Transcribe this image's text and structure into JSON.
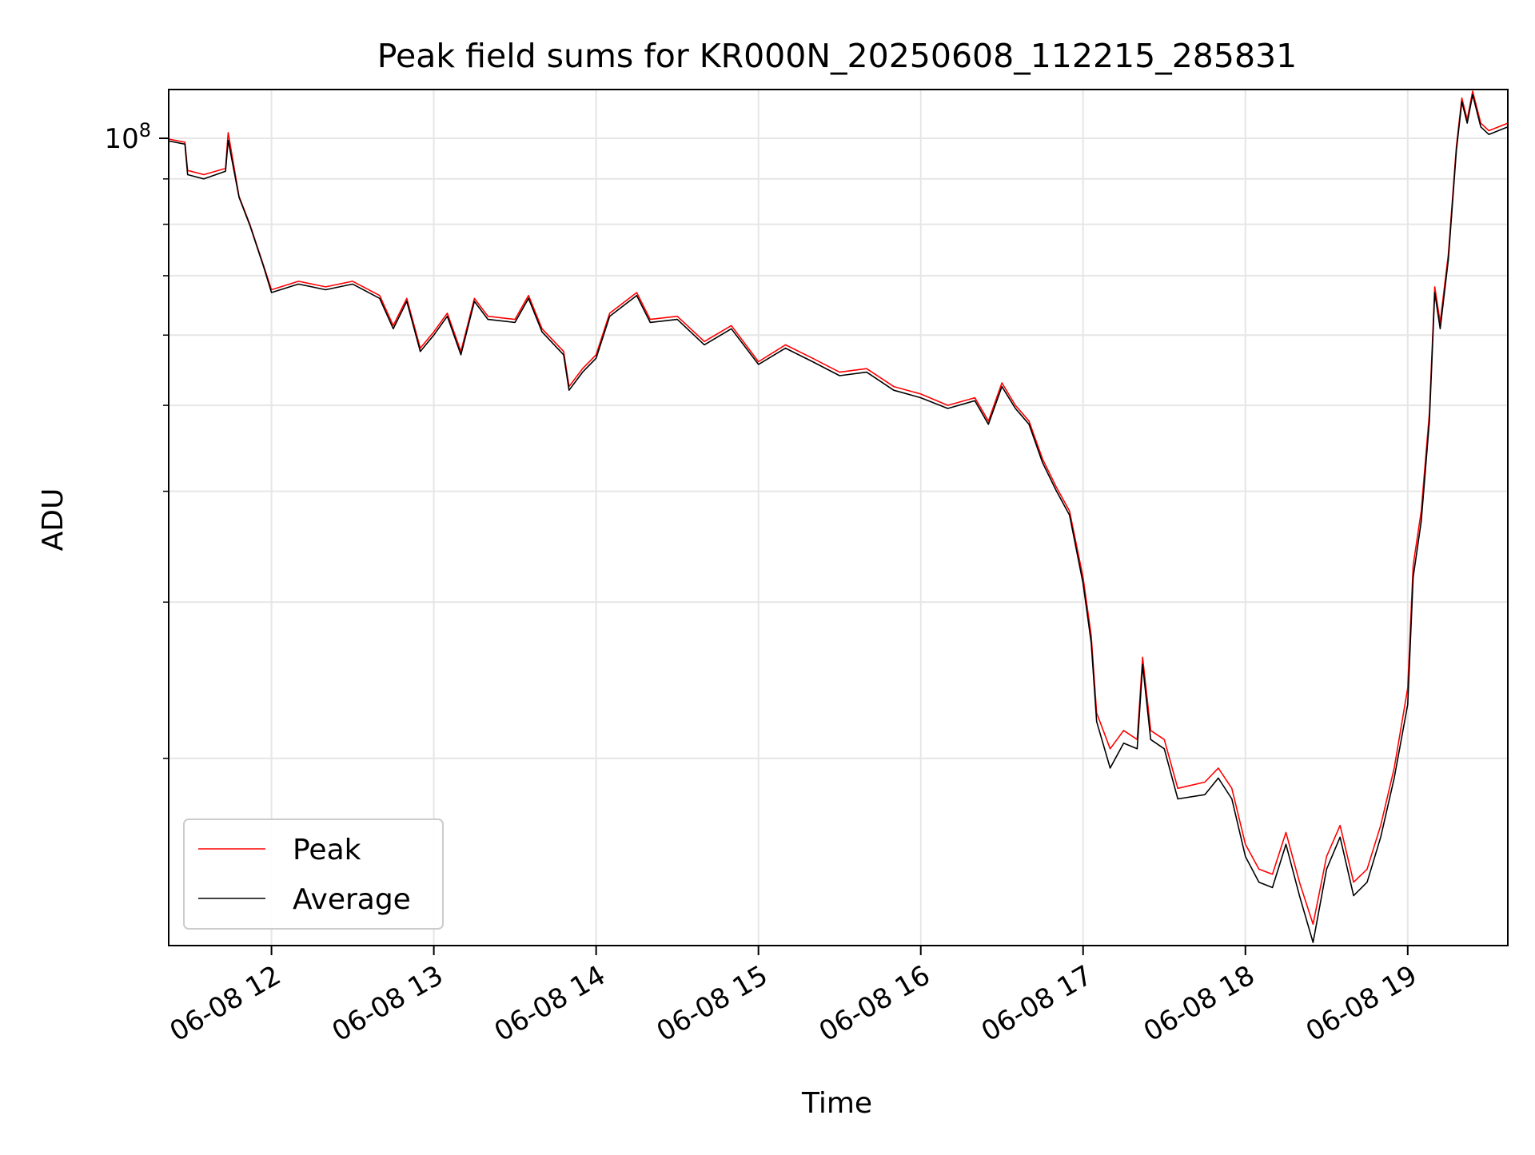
{
  "chart_data": {
    "type": "line",
    "title": "Peak field sums for KR000N_20250608_112215_285831",
    "xlabel": "Time",
    "ylabel": "ADU",
    "yscale": "log",
    "x_range": [
      "2025-06-08 11:22",
      "2025-06-08 19:37"
    ],
    "ylim": [
      12300000,
      113500000
    ],
    "x_ticks": [
      {
        "t": "2025-06-08 12:00",
        "label": "06-08 12"
      },
      {
        "t": "2025-06-08 13:00",
        "label": "06-08 13"
      },
      {
        "t": "2025-06-08 14:00",
        "label": "06-08 14"
      },
      {
        "t": "2025-06-08 15:00",
        "label": "06-08 15"
      },
      {
        "t": "2025-06-08 16:00",
        "label": "06-08 16"
      },
      {
        "t": "2025-06-08 17:00",
        "label": "06-08 17"
      },
      {
        "t": "2025-06-08 18:00",
        "label": "06-08 18"
      },
      {
        "t": "2025-06-08 19:00",
        "label": "06-08 19"
      }
    ],
    "y_major_ticks": [
      {
        "value": 100000000,
        "base": "10",
        "exp": "8"
      }
    ],
    "y_minor_ticks": [
      20000000,
      30000000,
      40000000,
      50000000,
      60000000,
      70000000,
      80000000,
      90000000
    ],
    "grid": true,
    "legend_position": "lower-left",
    "series": [
      {
        "name": "Peak",
        "color": "#ff0000",
        "points": [
          [
            "2025-06-08 11:22",
            99800000
          ],
          [
            "2025-06-08 11:28",
            99000000
          ],
          [
            "2025-06-08 11:29",
            92000000
          ],
          [
            "2025-06-08 11:35",
            91000000
          ],
          [
            "2025-06-08 11:43",
            92500000
          ],
          [
            "2025-06-08 11:44",
            101500000
          ],
          [
            "2025-06-08 11:48",
            86000000
          ],
          [
            "2025-06-08 11:52",
            80000000
          ],
          [
            "2025-06-08 11:57",
            72000000
          ],
          [
            "2025-06-08 12:00",
            67500000
          ],
          [
            "2025-06-08 12:10",
            69000000
          ],
          [
            "2025-06-08 12:20",
            68000000
          ],
          [
            "2025-06-08 12:30",
            69000000
          ],
          [
            "2025-06-08 12:40",
            66500000
          ],
          [
            "2025-06-08 12:45",
            61500000
          ],
          [
            "2025-06-08 12:50",
            66000000
          ],
          [
            "2025-06-08 12:55",
            58000000
          ],
          [
            "2025-06-08 13:00",
            60500000
          ],
          [
            "2025-06-08 13:05",
            63500000
          ],
          [
            "2025-06-08 13:10",
            57500000
          ],
          [
            "2025-06-08 13:15",
            66000000
          ],
          [
            "2025-06-08 13:20",
            63000000
          ],
          [
            "2025-06-08 13:30",
            62500000
          ],
          [
            "2025-06-08 13:35",
            66500000
          ],
          [
            "2025-06-08 13:40",
            61000000
          ],
          [
            "2025-06-08 13:48",
            57500000
          ],
          [
            "2025-06-08 13:50",
            52500000
          ],
          [
            "2025-06-08 13:55",
            55000000
          ],
          [
            "2025-06-08 14:00",
            57000000
          ],
          [
            "2025-06-08 14:05",
            63500000
          ],
          [
            "2025-06-08 14:15",
            67000000
          ],
          [
            "2025-06-08 14:20",
            62500000
          ],
          [
            "2025-06-08 14:30",
            63000000
          ],
          [
            "2025-06-08 14:40",
            59000000
          ],
          [
            "2025-06-08 14:50",
            61500000
          ],
          [
            "2025-06-08 15:00",
            56000000
          ],
          [
            "2025-06-08 15:10",
            58500000
          ],
          [
            "2025-06-08 15:20",
            56500000
          ],
          [
            "2025-06-08 15:30",
            54500000
          ],
          [
            "2025-06-08 15:40",
            55000000
          ],
          [
            "2025-06-08 15:50",
            52500000
          ],
          [
            "2025-06-08 16:00",
            51500000
          ],
          [
            "2025-06-08 16:10",
            50000000
          ],
          [
            "2025-06-08 16:20",
            51000000
          ],
          [
            "2025-06-08 16:25",
            48000000
          ],
          [
            "2025-06-08 16:30",
            53000000
          ],
          [
            "2025-06-08 16:35",
            50000000
          ],
          [
            "2025-06-08 16:40",
            48000000
          ],
          [
            "2025-06-08 16:45",
            43500000
          ],
          [
            "2025-06-08 16:50",
            40500000
          ],
          [
            "2025-06-08 16:55",
            38000000
          ],
          [
            "2025-06-08 17:00",
            32000000
          ],
          [
            "2025-06-08 17:03",
            27500000
          ],
          [
            "2025-06-08 17:05",
            22500000
          ],
          [
            "2025-06-08 17:10",
            20500000
          ],
          [
            "2025-06-08 17:15",
            21500000
          ],
          [
            "2025-06-08 17:20",
            21000000
          ],
          [
            "2025-06-08 17:22",
            26000000
          ],
          [
            "2025-06-08 17:25",
            21500000
          ],
          [
            "2025-06-08 17:30",
            21000000
          ],
          [
            "2025-06-08 17:35",
            18500000
          ],
          [
            "2025-06-08 17:45",
            18800000
          ],
          [
            "2025-06-08 17:50",
            19500000
          ],
          [
            "2025-06-08 17:55",
            18500000
          ],
          [
            "2025-06-08 18:00",
            16000000
          ],
          [
            "2025-06-08 18:05",
            15000000
          ],
          [
            "2025-06-08 18:10",
            14800000
          ],
          [
            "2025-06-08 18:15",
            16500000
          ],
          [
            "2025-06-08 18:20",
            14500000
          ],
          [
            "2025-06-08 18:25",
            13000000
          ],
          [
            "2025-06-08 18:30",
            15500000
          ],
          [
            "2025-06-08 18:35",
            16800000
          ],
          [
            "2025-06-08 18:40",
            14500000
          ],
          [
            "2025-06-08 18:45",
            15000000
          ],
          [
            "2025-06-08 18:50",
            16800000
          ],
          [
            "2025-06-08 18:55",
            19500000
          ],
          [
            "2025-06-08 19:00",
            24000000
          ],
          [
            "2025-06-08 19:02",
            33000000
          ],
          [
            "2025-06-08 19:05",
            38000000
          ],
          [
            "2025-06-08 19:08",
            49000000
          ],
          [
            "2025-06-08 19:10",
            68000000
          ],
          [
            "2025-06-08 19:12",
            62000000
          ],
          [
            "2025-06-08 19:15",
            74000000
          ],
          [
            "2025-06-08 19:18",
            98000000
          ],
          [
            "2025-06-08 19:20",
            111000000
          ],
          [
            "2025-06-08 19:22",
            105000000
          ],
          [
            "2025-06-08 19:24",
            113000000
          ],
          [
            "2025-06-08 19:27",
            104000000
          ],
          [
            "2025-06-08 19:30",
            102000000
          ],
          [
            "2025-06-08 19:37",
            104000000
          ]
        ]
      },
      {
        "name": "Average",
        "color": "#000000",
        "points": [
          [
            "2025-06-08 11:22",
            99300000
          ],
          [
            "2025-06-08 11:28",
            98500000
          ],
          [
            "2025-06-08 11:29",
            91000000
          ],
          [
            "2025-06-08 11:35",
            90000000
          ],
          [
            "2025-06-08 11:43",
            91800000
          ],
          [
            "2025-06-08 11:44",
            99500000
          ],
          [
            "2025-06-08 11:48",
            85800000
          ],
          [
            "2025-06-08 11:52",
            79800000
          ],
          [
            "2025-06-08 11:57",
            71800000
          ],
          [
            "2025-06-08 12:00",
            67000000
          ],
          [
            "2025-06-08 12:10",
            68500000
          ],
          [
            "2025-06-08 12:20",
            67500000
          ],
          [
            "2025-06-08 12:30",
            68500000
          ],
          [
            "2025-06-08 12:40",
            66000000
          ],
          [
            "2025-06-08 12:45",
            61000000
          ],
          [
            "2025-06-08 12:50",
            65500000
          ],
          [
            "2025-06-08 12:55",
            57500000
          ],
          [
            "2025-06-08 13:00",
            60000000
          ],
          [
            "2025-06-08 13:05",
            63000000
          ],
          [
            "2025-06-08 13:10",
            57000000
          ],
          [
            "2025-06-08 13:15",
            65500000
          ],
          [
            "2025-06-08 13:20",
            62500000
          ],
          [
            "2025-06-08 13:30",
            62000000
          ],
          [
            "2025-06-08 13:35",
            66000000
          ],
          [
            "2025-06-08 13:40",
            60500000
          ],
          [
            "2025-06-08 13:48",
            57000000
          ],
          [
            "2025-06-08 13:50",
            52000000
          ],
          [
            "2025-06-08 13:55",
            54500000
          ],
          [
            "2025-06-08 14:00",
            56500000
          ],
          [
            "2025-06-08 14:05",
            63000000
          ],
          [
            "2025-06-08 14:15",
            66500000
          ],
          [
            "2025-06-08 14:20",
            62000000
          ],
          [
            "2025-06-08 14:30",
            62500000
          ],
          [
            "2025-06-08 14:40",
            58500000
          ],
          [
            "2025-06-08 14:50",
            61000000
          ],
          [
            "2025-06-08 15:00",
            55600000
          ],
          [
            "2025-06-08 15:10",
            58000000
          ],
          [
            "2025-06-08 15:20",
            56000000
          ],
          [
            "2025-06-08 15:30",
            54000000
          ],
          [
            "2025-06-08 15:40",
            54500000
          ],
          [
            "2025-06-08 15:50",
            52000000
          ],
          [
            "2025-06-08 16:00",
            51000000
          ],
          [
            "2025-06-08 16:10",
            49600000
          ],
          [
            "2025-06-08 16:20",
            50600000
          ],
          [
            "2025-06-08 16:25",
            47600000
          ],
          [
            "2025-06-08 16:30",
            52500000
          ],
          [
            "2025-06-08 16:35",
            49600000
          ],
          [
            "2025-06-08 16:40",
            47600000
          ],
          [
            "2025-06-08 16:45",
            43100000
          ],
          [
            "2025-06-08 16:50",
            40100000
          ],
          [
            "2025-06-08 16:55",
            37600000
          ],
          [
            "2025-06-08 17:00",
            31500000
          ],
          [
            "2025-06-08 17:03",
            27000000
          ],
          [
            "2025-06-08 17:05",
            22000000
          ],
          [
            "2025-06-08 17:10",
            19500000
          ],
          [
            "2025-06-08 17:15",
            20800000
          ],
          [
            "2025-06-08 17:20",
            20500000
          ],
          [
            "2025-06-08 17:22",
            25500000
          ],
          [
            "2025-06-08 17:25",
            21000000
          ],
          [
            "2025-06-08 17:30",
            20500000
          ],
          [
            "2025-06-08 17:35",
            18000000
          ],
          [
            "2025-06-08 17:45",
            18200000
          ],
          [
            "2025-06-08 17:50",
            19000000
          ],
          [
            "2025-06-08 17:55",
            18000000
          ],
          [
            "2025-06-08 18:00",
            15500000
          ],
          [
            "2025-06-08 18:05",
            14500000
          ],
          [
            "2025-06-08 18:10",
            14300000
          ],
          [
            "2025-06-08 18:15",
            16000000
          ],
          [
            "2025-06-08 18:20",
            14000000
          ],
          [
            "2025-06-08 18:25",
            12400000
          ],
          [
            "2025-06-08 18:30",
            15000000
          ],
          [
            "2025-06-08 18:35",
            16300000
          ],
          [
            "2025-06-08 18:40",
            14000000
          ],
          [
            "2025-06-08 18:45",
            14500000
          ],
          [
            "2025-06-08 18:50",
            16300000
          ],
          [
            "2025-06-08 18:55",
            19000000
          ],
          [
            "2025-06-08 19:00",
            23000000
          ],
          [
            "2025-06-08 19:02",
            32000000
          ],
          [
            "2025-06-08 19:05",
            37000000
          ],
          [
            "2025-06-08 19:08",
            48000000
          ],
          [
            "2025-06-08 19:10",
            67000000
          ],
          [
            "2025-06-08 19:12",
            61000000
          ],
          [
            "2025-06-08 19:15",
            73000000
          ],
          [
            "2025-06-08 19:18",
            97000000
          ],
          [
            "2025-06-08 19:20",
            110000000
          ],
          [
            "2025-06-08 19:22",
            104000000
          ],
          [
            "2025-06-08 19:24",
            112000000
          ],
          [
            "2025-06-08 19:27",
            103000000
          ],
          [
            "2025-06-08 19:30",
            101000000
          ],
          [
            "2025-06-08 19:37",
            103000000
          ]
        ]
      }
    ]
  }
}
